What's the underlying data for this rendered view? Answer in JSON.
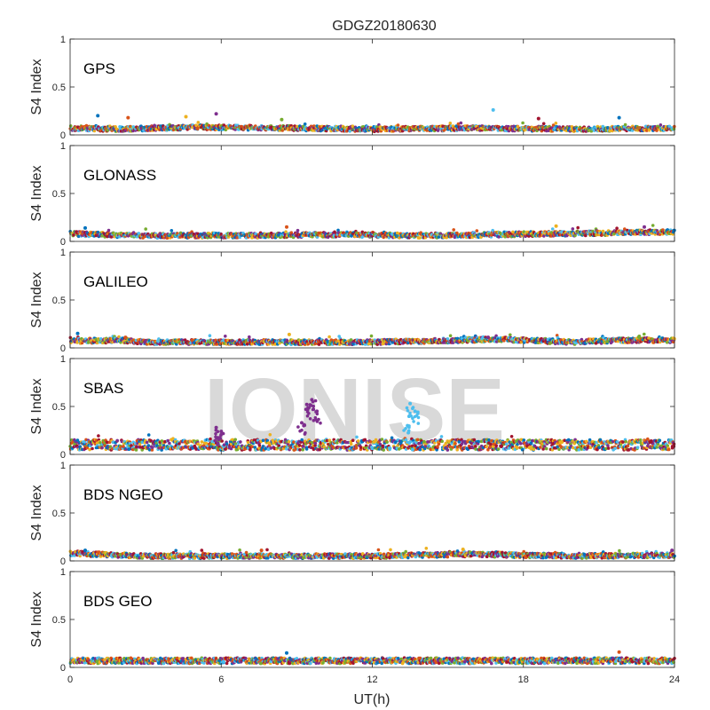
{
  "title": "GDGZ20180630",
  "xlabel": "UT(h)",
  "ylabel": "S4 Index",
  "watermark": "IONISE",
  "chart_data": {
    "type": "scatter",
    "title": "GDGZ20180630",
    "xlabel": "UT(h)",
    "ylabel": "S4 Index",
    "xlim": [
      0,
      24
    ],
    "ylim": [
      0,
      1
    ],
    "xticks": [
      "0",
      "6",
      "12",
      "18",
      "24"
    ],
    "yticks": [
      "0",
      "0.5",
      "1"
    ],
    "grid": false,
    "colors": [
      "#0072BD",
      "#D95319",
      "#EDB120",
      "#7E2F8E",
      "#77AC30",
      "#4DBEEE",
      "#A2142F"
    ],
    "panels": [
      {
        "name": "GPS",
        "base_profile": [
          [
            0,
            0.07
          ],
          [
            2,
            0.06
          ],
          [
            5,
            0.08
          ],
          [
            9,
            0.07
          ],
          [
            12,
            0.06
          ],
          [
            16,
            0.07
          ],
          [
            20,
            0.06
          ],
          [
            24,
            0.07
          ]
        ],
        "spikes": [
          [
            1.1,
            0.2
          ],
          [
            2.3,
            0.18
          ],
          [
            4.6,
            0.19
          ],
          [
            5.8,
            0.22
          ],
          [
            8.4,
            0.16
          ],
          [
            16.8,
            0.26
          ],
          [
            18.6,
            0.17
          ],
          [
            21.8,
            0.18
          ]
        ]
      },
      {
        "name": "GLONASS",
        "base_profile": [
          [
            0,
            0.08
          ],
          [
            3,
            0.06
          ],
          [
            7,
            0.06
          ],
          [
            10,
            0.07
          ],
          [
            14,
            0.06
          ],
          [
            19,
            0.08
          ],
          [
            22,
            0.09
          ],
          [
            24,
            0.1
          ]
        ],
        "spikes": [
          [
            0.6,
            0.14
          ],
          [
            8.6,
            0.15
          ],
          [
            19.3,
            0.16
          ],
          [
            22.8,
            0.15
          ]
        ]
      },
      {
        "name": "GALILEO",
        "base_profile": [
          [
            0,
            0.07
          ],
          [
            2,
            0.08
          ],
          [
            3,
            0.06
          ],
          [
            8,
            0.06
          ],
          [
            12,
            0.06
          ],
          [
            17,
            0.09
          ],
          [
            20,
            0.06
          ],
          [
            22,
            0.08
          ],
          [
            24,
            0.08
          ]
        ],
        "spikes": [
          [
            0.3,
            0.15
          ],
          [
            2.2,
            0.11
          ],
          [
            8.7,
            0.14
          ],
          [
            16.6,
            0.11
          ],
          [
            22.6,
            0.12
          ]
        ]
      },
      {
        "name": "SBAS",
        "base_profile": [
          [
            0,
            0.12
          ],
          [
            24,
            0.12
          ]
        ],
        "spikes": [
          [
            5.8,
            0.28
          ],
          [
            6.0,
            0.24
          ],
          [
            9.4,
            0.52
          ],
          [
            9.6,
            0.57
          ],
          [
            9.8,
            0.45
          ],
          [
            9.2,
            0.33
          ],
          [
            13.5,
            0.53
          ],
          [
            13.7,
            0.45
          ],
          [
            13.4,
            0.3
          ],
          [
            13.6,
            0.05
          ]
        ]
      },
      {
        "name": "BDS NGEO",
        "base_profile": [
          [
            0,
            0.08
          ],
          [
            3,
            0.05
          ],
          [
            8,
            0.05
          ],
          [
            12,
            0.05
          ],
          [
            16,
            0.07
          ],
          [
            20,
            0.05
          ],
          [
            24,
            0.06
          ]
        ],
        "spikes": [
          [
            0.6,
            0.11
          ],
          [
            7.6,
            0.11
          ],
          [
            15.6,
            0.12
          ],
          [
            23.9,
            0.11
          ]
        ]
      },
      {
        "name": "BDS GEO",
        "base_profile": [
          [
            0,
            0.08
          ],
          [
            24,
            0.08
          ]
        ],
        "spikes": [
          [
            8.6,
            0.15
          ],
          [
            21.8,
            0.16
          ]
        ]
      }
    ]
  }
}
